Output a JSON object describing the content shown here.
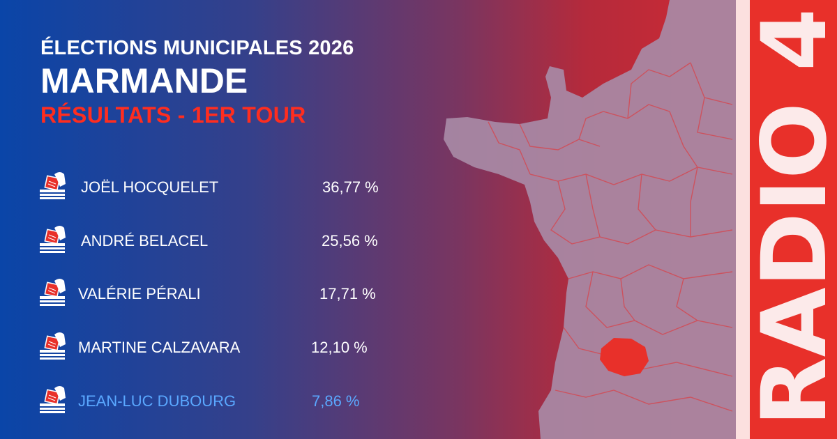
{
  "header": {
    "title": "ÉLECTIONS MUNICIPALES 2026",
    "city": "MARMANDE",
    "subtitle": "RÉSULTATS - 1ER TOUR"
  },
  "results": [
    {
      "name": "JOËL HOCQUELET",
      "percent": "36,77 %"
    },
    {
      "name": "ANDRÉ BELACEL",
      "percent": "25,56 %"
    },
    {
      "name": "VALÉRIE PÉRALI",
      "percent": "17,71 %"
    },
    {
      "name": "MARTINE CALZAVARA",
      "percent": "12,10 %"
    },
    {
      "name": "JEAN-LUC DUBOURG",
      "percent": "7,86 %"
    }
  ],
  "logo": {
    "text": "RADIO 4"
  },
  "colors": {
    "accent_red": "#ff2d1f",
    "muted_blue": "#5aa8ff",
    "map_fill": "#a88aa6",
    "highlight_department": "#e8302a"
  },
  "icons": {
    "vote": "ballot-box-icon"
  }
}
